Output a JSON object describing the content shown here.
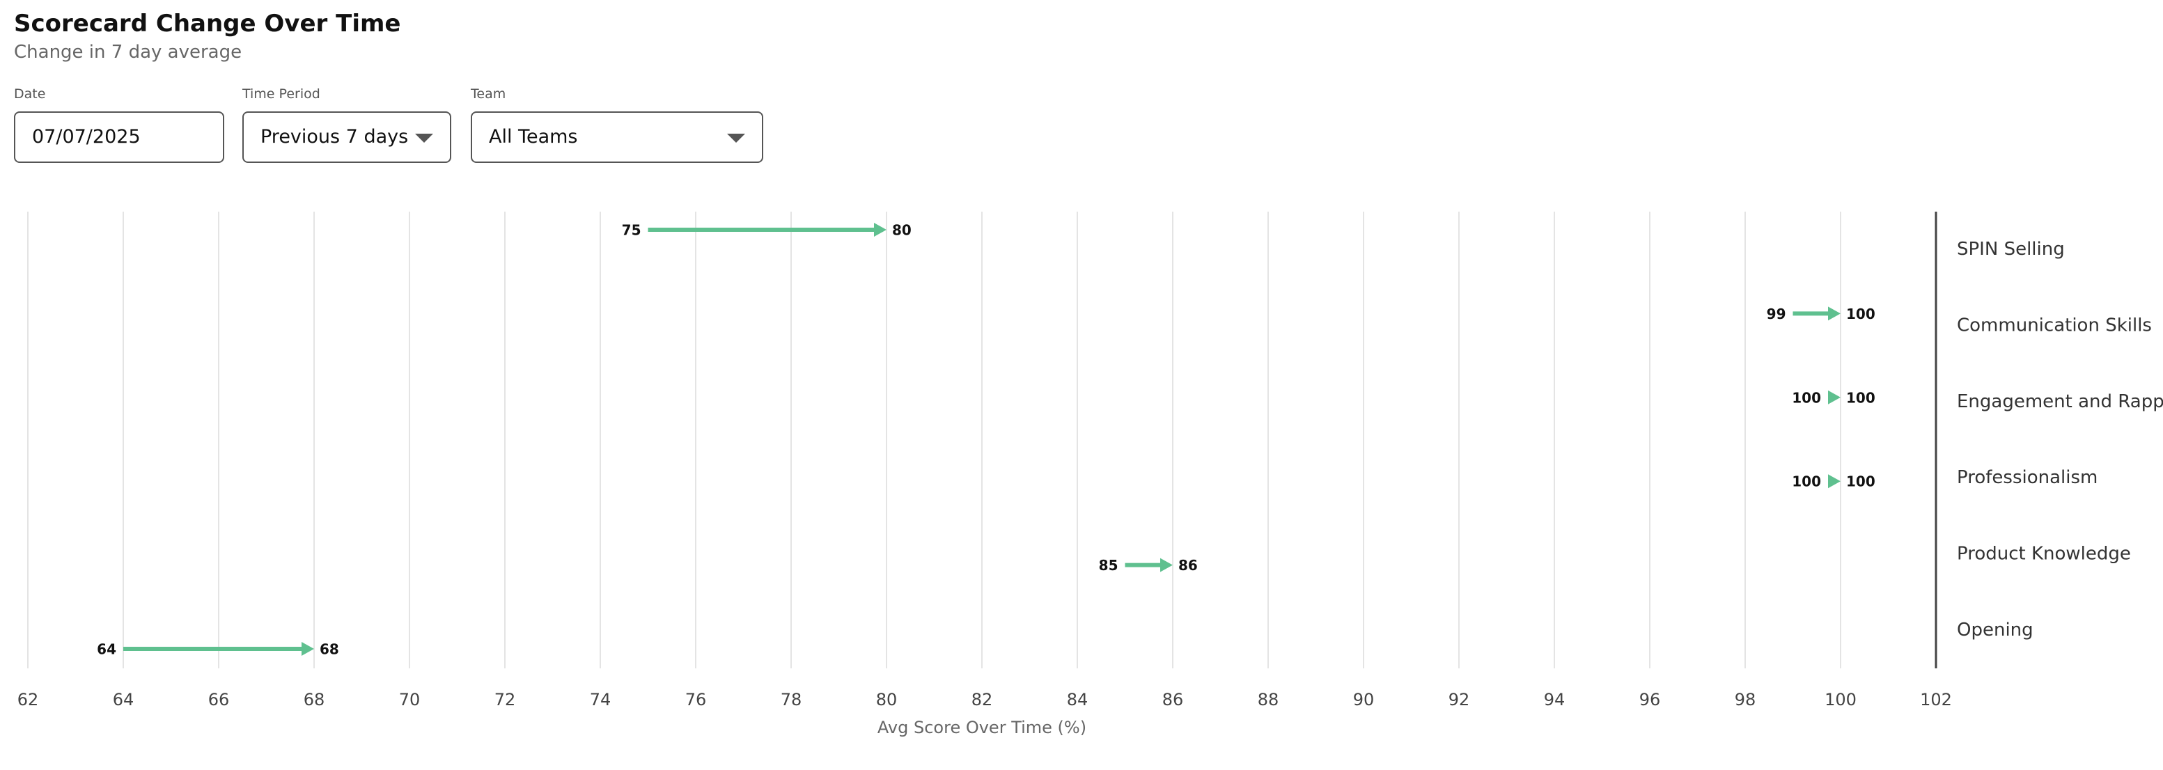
{
  "header": {
    "title": "Scorecard Change Over Time",
    "subtitle": "Change in 7 day average"
  },
  "filters": [
    {
      "label": "Date",
      "value": "07/07/2025"
    },
    {
      "label": "Time Period",
      "value": "Previous 7 days"
    },
    {
      "label": "Team",
      "value": "All Teams"
    }
  ],
  "chart_data": {
    "type": "arrow",
    "categories": [
      "SPIN Selling",
      "Communication Skills",
      "Engagement and Rapport",
      "Professionalism",
      "Product Knowledge",
      "Opening"
    ],
    "from": [
      75,
      99,
      100,
      100,
      85,
      64
    ],
    "to": [
      80,
      100,
      100,
      100,
      86,
      68
    ],
    "color": "#5fc08f",
    "xlabel": "Avg Score Over Time (%)",
    "xlim": [
      62,
      102
    ],
    "xticks": [
      62,
      64,
      66,
      68,
      70,
      72,
      74,
      76,
      78,
      80,
      82,
      84,
      86,
      88,
      90,
      92,
      94,
      96,
      98,
      100,
      102
    ],
    "grid": true
  }
}
